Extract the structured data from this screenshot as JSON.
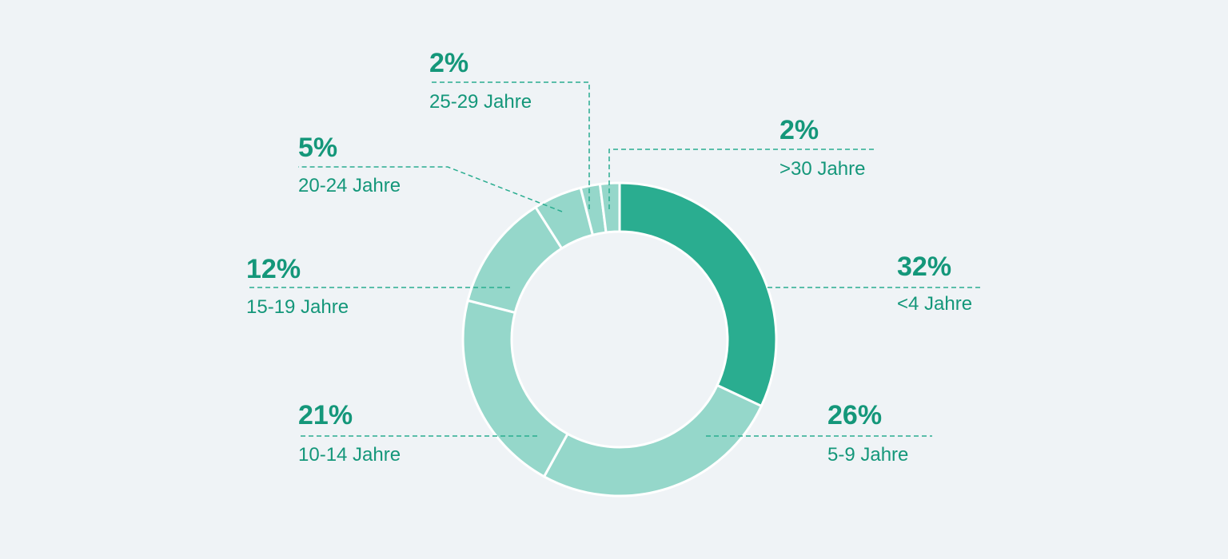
{
  "colors": {
    "background": "#eff3f6",
    "primary_slice": "#2aad90",
    "secondary_slice": "#95d7ca",
    "label_text": "#14977a",
    "leader_line": "#2aad90",
    "separator": "#ffffff"
  },
  "chart_data": {
    "type": "pie",
    "style": "donut",
    "start_angle": "12 o'clock",
    "direction": "clockwise",
    "series": [
      {
        "slices": [
          {
            "label": "<4 Jahre",
            "value": 32,
            "value_label": "32%"
          },
          {
            "label": "5-9 Jahre",
            "value": 26,
            "value_label": "26%"
          },
          {
            "label": "10-14 Jahre",
            "value": 21,
            "value_label": "21%"
          },
          {
            "label": "15-19 Jahre",
            "value": 12,
            "value_label": "12%"
          },
          {
            "label": "20-24 Jahre",
            "value": 5,
            "value_label": "5%"
          },
          {
            "label": "25-29 Jahre",
            "value": 2,
            "value_label": "2%"
          },
          {
            "label": ">30 Jahre",
            "value": 2,
            "value_label": "2%"
          }
        ]
      }
    ]
  }
}
